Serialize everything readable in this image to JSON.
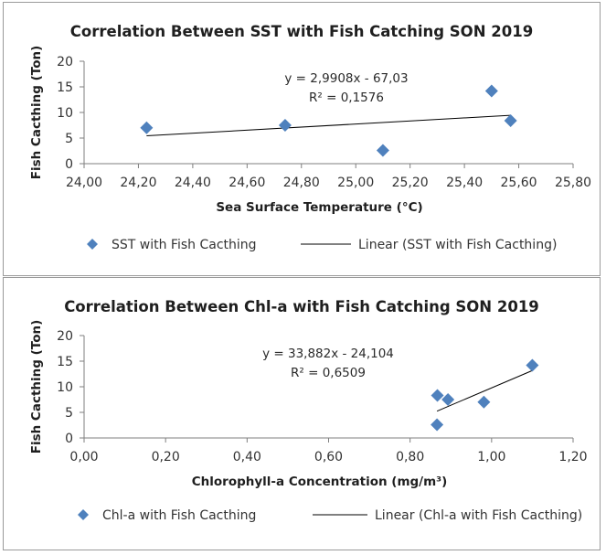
{
  "chart_data": [
    {
      "type": "scatter",
      "title": "Correlation Between SST with Fish Catching SON 2019",
      "xlabel": "Sea Surface Temperature (°C)",
      "ylabel": "Fish Cacthing (Ton)",
      "xlim": [
        24.0,
        25.8
      ],
      "ylim": [
        0,
        20
      ],
      "x_ticks": [
        "24,00",
        "24,20",
        "24,40",
        "24,60",
        "24,80",
        "25,00",
        "25,20",
        "25,40",
        "25,60",
        "25,80"
      ],
      "y_ticks": [
        "0",
        "5",
        "10",
        "15",
        "20"
      ],
      "series": [
        {
          "name": "SST with Fish Cacthing",
          "marker": "diamond",
          "color": "#4f81bd",
          "points": [
            {
              "x": 24.23,
              "y": 7.0
            },
            {
              "x": 24.74,
              "y": 7.5
            },
            {
              "x": 25.1,
              "y": 2.6
            },
            {
              "x": 25.5,
              "y": 14.2
            },
            {
              "x": 25.57,
              "y": 8.4
            }
          ]
        }
      ],
      "trendline": {
        "name": "Linear (SST with Fish Cacthing)",
        "slope": 2.9908,
        "intercept": -67.03,
        "x_range": [
          24.23,
          25.57
        ],
        "color": "#000000",
        "equation": "y = 2,9908x - 67,03",
        "r2": "R² = 0,1576"
      },
      "legend": "bottom",
      "grid": false
    },
    {
      "type": "scatter",
      "title": "Correlation Between Chl-a with Fish Catching SON 2019",
      "xlabel": "Chlorophyll-a Concentration (mg/m³)",
      "ylabel": "Fish Cacthing (Ton)",
      "xlim": [
        0.0,
        1.2
      ],
      "ylim": [
        0,
        20
      ],
      "x_ticks": [
        "0,00",
        "0,20",
        "0,40",
        "0,60",
        "0,80",
        "1,00",
        "1,20"
      ],
      "y_ticks": [
        "0",
        "5",
        "10",
        "15",
        "20"
      ],
      "series": [
        {
          "name": "Chl-a with Fish Cacthing",
          "marker": "diamond",
          "color": "#4f81bd",
          "points": [
            {
              "x": 0.866,
              "y": 2.6
            },
            {
              "x": 0.867,
              "y": 8.3
            },
            {
              "x": 0.893,
              "y": 7.5
            },
            {
              "x": 0.981,
              "y": 7.0
            },
            {
              "x": 1.1,
              "y": 14.2
            }
          ]
        }
      ],
      "trendline": {
        "name": "Linear (Chl-a with Fish Cacthing)",
        "slope": 33.882,
        "intercept": -24.104,
        "x_range": [
          0.866,
          1.1
        ],
        "color": "#000000",
        "equation": "y = 33,882x - 24,104",
        "r2": "R² = 0,6509"
      },
      "legend": "bottom",
      "grid": false
    }
  ]
}
